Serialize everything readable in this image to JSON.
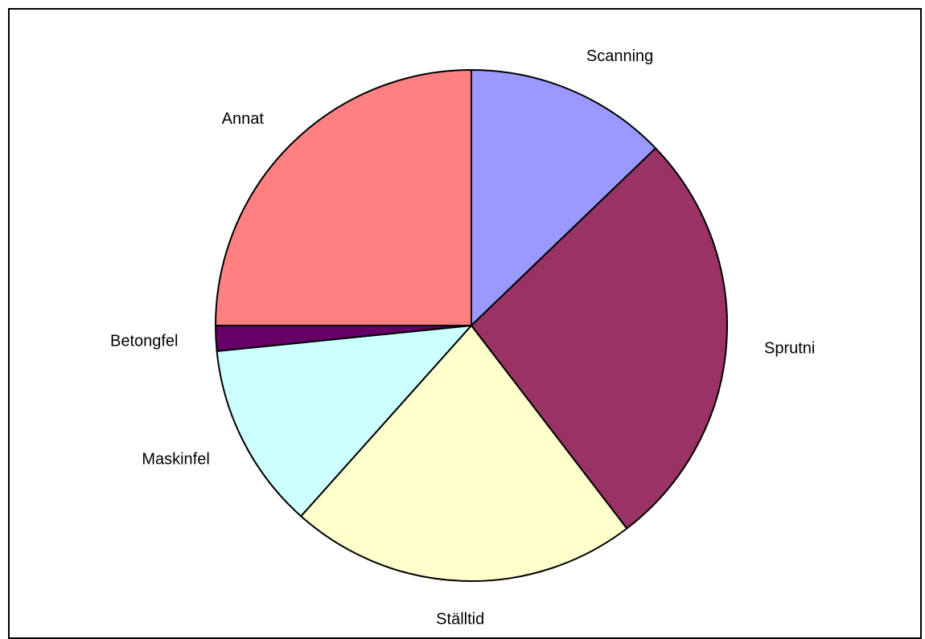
{
  "chart_data": {
    "type": "pie",
    "title": "",
    "start_angle_deg": 0,
    "direction": "clockwise",
    "slices": [
      {
        "label": "Scanning",
        "value": 12.8,
        "color": "#9999FF"
      },
      {
        "label": "Sprutni",
        "value": 26.8,
        "color": "#993366"
      },
      {
        "label": "Ställtid",
        "value": 22.0,
        "color": "#FFFFCC"
      },
      {
        "label": "Maskinfel",
        "value": 11.8,
        "color": "#CCFFFF"
      },
      {
        "label": "Betongfel",
        "value": 1.6,
        "color": "#660066"
      },
      {
        "label": "Annat",
        "value": 25.0,
        "color": "#FF8080"
      }
    ]
  }
}
